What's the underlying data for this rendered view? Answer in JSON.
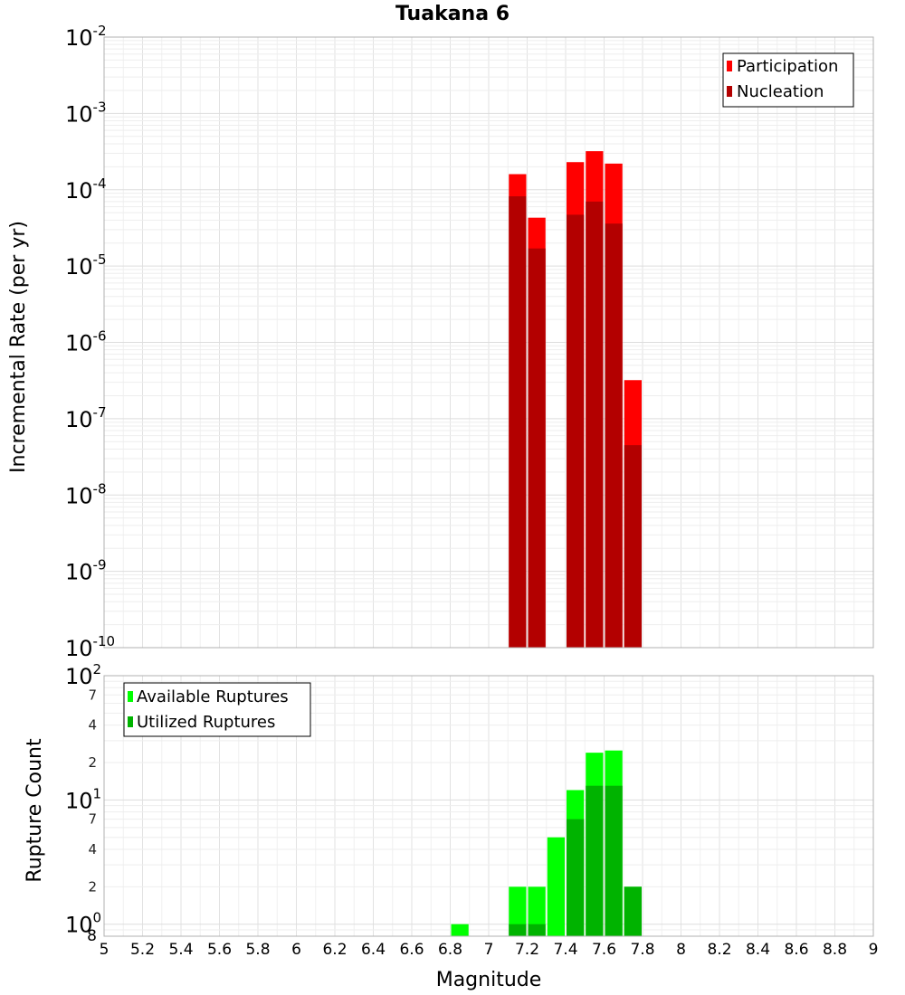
{
  "chart_data": [
    {
      "type": "bar",
      "title": "Tuakana 6",
      "xlabel": "Magnitude",
      "ylabel": "Incremental Rate (per yr)",
      "yscale": "log",
      "xlim": [
        5,
        9
      ],
      "ylim": [
        1e-10,
        0.01
      ],
      "bin_width": 0.1,
      "y_ticks": [
        {
          "base": "10",
          "exp": "-10"
        },
        {
          "base": "10",
          "exp": "-9"
        },
        {
          "base": "10",
          "exp": "-8"
        },
        {
          "base": "10",
          "exp": "-7"
        },
        {
          "base": "10",
          "exp": "-6"
        },
        {
          "base": "10",
          "exp": "-5"
        },
        {
          "base": "10",
          "exp": "-4"
        },
        {
          "base": "10",
          "exp": "-3"
        },
        {
          "base": "10",
          "exp": "-2"
        }
      ],
      "legend": [
        {
          "label": "Participation",
          "color": "#ff0000"
        },
        {
          "label": "Nucleation",
          "color": "#b30000"
        }
      ],
      "series": [
        {
          "name": "Participation",
          "color": "#ff0000",
          "x": [
            7.15,
            7.25,
            7.45,
            7.55,
            7.65,
            7.75
          ],
          "values": [
            0.00016,
            4.3e-05,
            0.00023,
            0.00032,
            0.00022,
            3.2e-07
          ]
        },
        {
          "name": "Nucleation",
          "color": "#b30000",
          "x": [
            7.15,
            7.25,
            7.45,
            7.55,
            7.65,
            7.75
          ],
          "values": [
            8.2e-05,
            1.7e-05,
            4.7e-05,
            7e-05,
            3.6e-05,
            4.5e-08
          ]
        }
      ]
    },
    {
      "type": "bar",
      "title": "",
      "xlabel": "Magnitude",
      "ylabel": "Rupture Count",
      "yscale": "log",
      "xlim": [
        5,
        9
      ],
      "ylim": [
        0.8,
        100
      ],
      "bin_width": 0.1,
      "y_major_ticks": [
        {
          "base": "10",
          "exp": "0"
        },
        {
          "base": "10",
          "exp": "1"
        },
        {
          "base": "10",
          "exp": "2"
        }
      ],
      "y_minor_labels": [
        "8",
        "2",
        "4",
        "7",
        "2",
        "4",
        "7"
      ],
      "x_ticks": [
        "5",
        "5.2",
        "5.4",
        "5.6",
        "5.8",
        "6",
        "6.2",
        "6.4",
        "6.6",
        "6.8",
        "7",
        "7.2",
        "7.4",
        "7.6",
        "7.8",
        "8",
        "8.2",
        "8.4",
        "8.6",
        "8.8",
        "9"
      ],
      "legend": [
        {
          "label": "Available Ruptures",
          "color": "#00ff00"
        },
        {
          "label": "Utilized Ruptures",
          "color": "#00b300"
        }
      ],
      "series": [
        {
          "name": "Available Ruptures",
          "color": "#00ff00",
          "x": [
            6.85,
            7.15,
            7.25,
            7.35,
            7.45,
            7.55,
            7.65,
            7.75
          ],
          "values": [
            1,
            2,
            2,
            5,
            12,
            24,
            25,
            2
          ]
        },
        {
          "name": "Utilized Ruptures",
          "color": "#00b300",
          "x": [
            7.15,
            7.25,
            7.45,
            7.55,
            7.65,
            7.75
          ],
          "values": [
            1,
            1,
            7,
            13,
            13,
            2
          ]
        }
      ]
    }
  ]
}
